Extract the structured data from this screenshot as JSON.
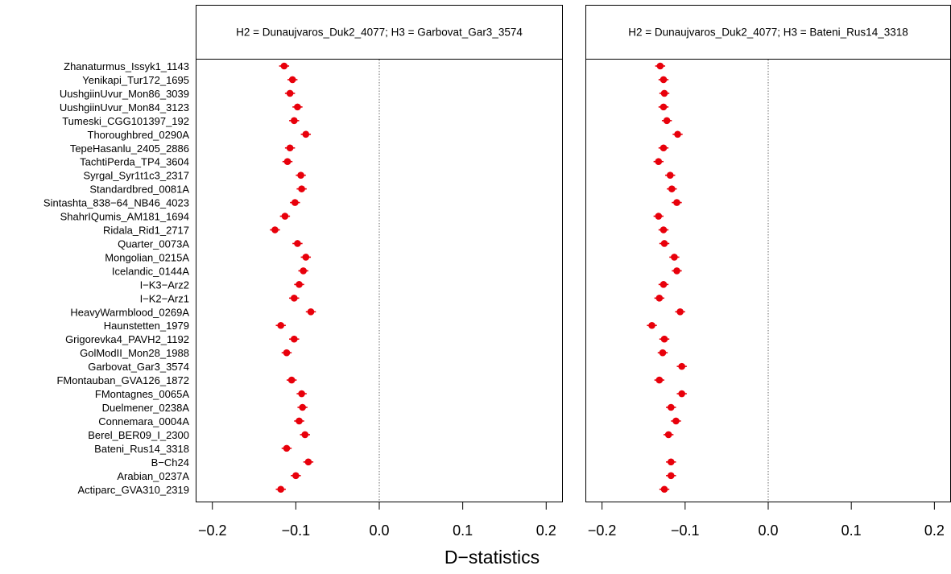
{
  "chart_data": {
    "type": "scatter",
    "xlabel": "D−statistics",
    "xlim": [
      -0.22,
      0.22
    ],
    "xticks": [
      -0.2,
      -0.1,
      0.0,
      0.1,
      0.2
    ],
    "xtick_labels": [
      "−0.2",
      "−0.1",
      "0.0",
      "0.1",
      "0.2"
    ],
    "reference_line": 0.0,
    "point_color": "#e8000b",
    "categories": [
      "Zhanaturmus_Issyk1_1143",
      "Yenikapi_Tur172_1695",
      "UushgiinUvur_Mon86_3039",
      "UushgiinUvur_Mon84_3123",
      "Tumeski_CGG101397_192",
      "Thoroughbred_0290A",
      "TepeHasanlu_2405_2886",
      "TachtiPerda_TP4_3604",
      "Syrgal_Syr1t1c3_2317",
      "Standardbred_0081A",
      "Sintashta_838−64_NB46_4023",
      "ShahrIQumis_AM181_1694",
      "Ridala_Rid1_2717",
      "Quarter_0073A",
      "Mongolian_0215A",
      "Icelandic_0144A",
      "I−K3−Arz2",
      "I−K2−Arz1",
      "HeavyWarmblood_0269A",
      "Haunstetten_1979",
      "Grigorevka4_PAVH2_1192",
      "GolModII_Mon28_1988",
      "Garbovat_Gar3_3574",
      "FMontauban_GVA126_1872",
      "FMontagnes_0065A",
      "Duelmener_0238A",
      "Connemara_0004A",
      "Berel_BER09_I_2300",
      "Bateni_Rus14_3318",
      "B−Ch24",
      "Arabian_0237A",
      "Actiparc_GVA310_2319"
    ],
    "panels": [
      {
        "title": "H2 = Dunaujvaros_Duk2_4077; H3 = Garbovat_Gar3_3574",
        "values": [
          -0.114,
          -0.104,
          -0.107,
          -0.098,
          -0.102,
          -0.088,
          -0.107,
          -0.11,
          -0.094,
          -0.093,
          -0.101,
          -0.113,
          -0.125,
          -0.098,
          -0.088,
          -0.091,
          -0.096,
          -0.102,
          -0.082,
          -0.118,
          -0.102,
          -0.111,
          null,
          -0.105,
          -0.093,
          -0.092,
          -0.096,
          -0.089,
          -0.111,
          -0.085,
          -0.1,
          -0.118
        ],
        "err": [
          0.006,
          0.006,
          0.006,
          0.006,
          0.006,
          0.006,
          0.006,
          0.006,
          0.006,
          0.006,
          0.006,
          0.006,
          0.006,
          0.006,
          0.006,
          0.006,
          0.006,
          0.006,
          0.006,
          0.006,
          0.006,
          0.006,
          0.006,
          0.006,
          0.006,
          0.006,
          0.006,
          0.006,
          0.006,
          0.006,
          0.006,
          0.006
        ]
      },
      {
        "title": "H2 = Dunaujvaros_Duk2_4077; H3 = Bateni_Rus14_3318",
        "values": [
          -0.13,
          -0.126,
          -0.125,
          -0.126,
          -0.122,
          -0.109,
          -0.126,
          -0.132,
          -0.118,
          -0.116,
          -0.11,
          -0.132,
          -0.126,
          -0.125,
          -0.113,
          -0.11,
          -0.126,
          -0.131,
          -0.106,
          -0.14,
          -0.125,
          -0.127,
          -0.104,
          -0.131,
          -0.104,
          -0.117,
          -0.111,
          -0.12,
          null,
          -0.117,
          -0.117,
          -0.125
        ],
        "err": [
          0.006,
          0.006,
          0.006,
          0.006,
          0.006,
          0.006,
          0.006,
          0.006,
          0.006,
          0.006,
          0.006,
          0.006,
          0.006,
          0.006,
          0.006,
          0.006,
          0.006,
          0.006,
          0.006,
          0.006,
          0.006,
          0.006,
          0.006,
          0.006,
          0.006,
          0.006,
          0.006,
          0.006,
          0.006,
          0.006,
          0.006,
          0.006
        ]
      }
    ]
  }
}
